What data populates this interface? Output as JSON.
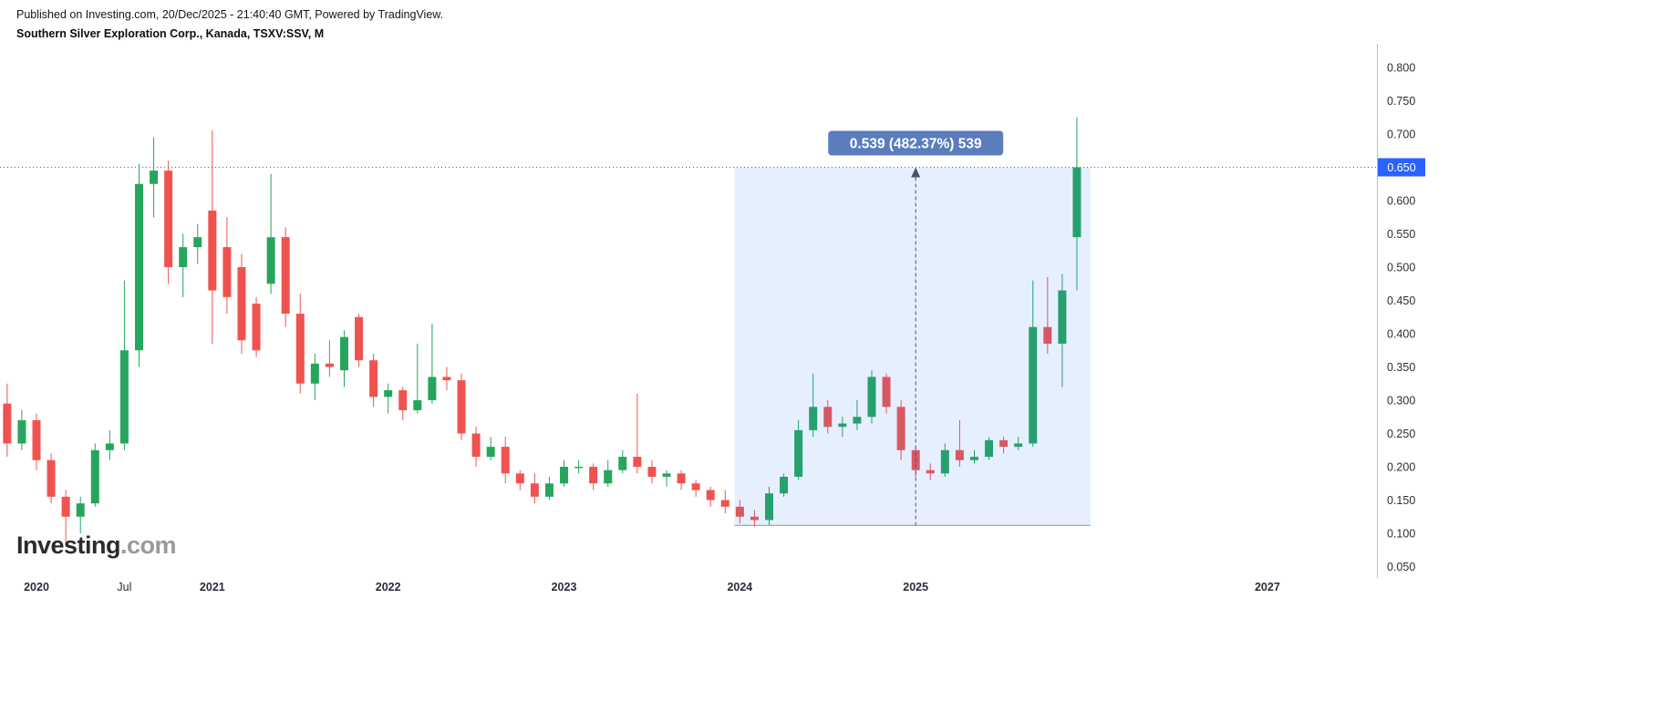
{
  "header": {
    "published_line": "Published on Investing.com, 20/Dec/2025 - 21:40:40 GMT, Powered by TradingView.",
    "instrument_line": "Southern Silver Exploration Corp., Kanada, TSXV:SSV, M"
  },
  "watermark": {
    "brand": "Investing",
    "suffix": ".com"
  },
  "colors": {
    "candle_up": "#26a65d",
    "candle_down": "#ef5350",
    "price_line": "#2962ff",
    "measure_fill": "rgba(49,121,245,0.12)",
    "measure_badge": "#5b7dbe",
    "measure_line": "#4a5568",
    "measure_edge": "#8796a5",
    "axis_text": "#2a2e39"
  },
  "chart_data": {
    "type": "candlestick",
    "title": "Southern Silver Exploration Corp., Kanada, TSXV:SSV, M",
    "timeframe": "Monthly",
    "ylim": [
      0.05,
      0.8
    ],
    "grid": false,
    "y_ticks": [
      "0.800",
      "0.750",
      "0.700",
      "0.650",
      "0.600",
      "0.550",
      "0.500",
      "0.450",
      "0.400",
      "0.350",
      "0.300",
      "0.250",
      "0.200",
      "0.150",
      "0.100",
      "0.050"
    ],
    "x_ticks": [
      {
        "label": "2020",
        "i": 2,
        "bold": true
      },
      {
        "label": "Jul",
        "i": 8,
        "bold": false
      },
      {
        "label": "2021",
        "i": 14,
        "bold": true
      },
      {
        "label": "2022",
        "i": 26,
        "bold": true
      },
      {
        "label": "2023",
        "i": 38,
        "bold": true
      },
      {
        "label": "2024",
        "i": 50,
        "bold": true
      },
      {
        "label": "2025",
        "i": 62,
        "bold": true
      },
      {
        "label": "2027",
        "i": 86,
        "bold": true
      }
    ],
    "candles": [
      {
        "t": "2019-11",
        "o": 0.295,
        "h": 0.325,
        "l": 0.215,
        "c": 0.235
      },
      {
        "t": "2019-12",
        "o": 0.235,
        "h": 0.285,
        "l": 0.225,
        "c": 0.27
      },
      {
        "t": "2020-01",
        "o": 0.27,
        "h": 0.28,
        "l": 0.195,
        "c": 0.21
      },
      {
        "t": "2020-02",
        "o": 0.21,
        "h": 0.22,
        "l": 0.145,
        "c": 0.155
      },
      {
        "t": "2020-03",
        "o": 0.155,
        "h": 0.165,
        "l": 0.08,
        "c": 0.125
      },
      {
        "t": "2020-04",
        "o": 0.125,
        "h": 0.155,
        "l": 0.1,
        "c": 0.145
      },
      {
        "t": "2020-05",
        "o": 0.145,
        "h": 0.235,
        "l": 0.14,
        "c": 0.225
      },
      {
        "t": "2020-06",
        "o": 0.225,
        "h": 0.255,
        "l": 0.21,
        "c": 0.235
      },
      {
        "t": "2020-07",
        "o": 0.235,
        "h": 0.48,
        "l": 0.225,
        "c": 0.375
      },
      {
        "t": "2020-08",
        "o": 0.375,
        "h": 0.655,
        "l": 0.35,
        "c": 0.625
      },
      {
        "t": "2020-09",
        "o": 0.625,
        "h": 0.695,
        "l": 0.575,
        "c": 0.645
      },
      {
        "t": "2020-10",
        "o": 0.645,
        "h": 0.66,
        "l": 0.475,
        "c": 0.5
      },
      {
        "t": "2020-11",
        "o": 0.5,
        "h": 0.55,
        "l": 0.455,
        "c": 0.53
      },
      {
        "t": "2020-12",
        "o": 0.53,
        "h": 0.565,
        "l": 0.505,
        "c": 0.545
      },
      {
        "t": "2021-01",
        "o": 0.585,
        "h": 0.705,
        "l": 0.385,
        "c": 0.465
      },
      {
        "t": "2021-02",
        "o": 0.53,
        "h": 0.575,
        "l": 0.43,
        "c": 0.455
      },
      {
        "t": "2021-03",
        "o": 0.5,
        "h": 0.52,
        "l": 0.37,
        "c": 0.39
      },
      {
        "t": "2021-04",
        "o": 0.445,
        "h": 0.455,
        "l": 0.365,
        "c": 0.375
      },
      {
        "t": "2021-05",
        "o": 0.475,
        "h": 0.64,
        "l": 0.46,
        "c": 0.545
      },
      {
        "t": "2021-06",
        "o": 0.545,
        "h": 0.56,
        "l": 0.41,
        "c": 0.43
      },
      {
        "t": "2021-07",
        "o": 0.43,
        "h": 0.46,
        "l": 0.31,
        "c": 0.325
      },
      {
        "t": "2021-08",
        "o": 0.325,
        "h": 0.37,
        "l": 0.3,
        "c": 0.355
      },
      {
        "t": "2021-09",
        "o": 0.355,
        "h": 0.39,
        "l": 0.335,
        "c": 0.35
      },
      {
        "t": "2021-10",
        "o": 0.345,
        "h": 0.405,
        "l": 0.32,
        "c": 0.395
      },
      {
        "t": "2021-11",
        "o": 0.425,
        "h": 0.43,
        "l": 0.35,
        "c": 0.36
      },
      {
        "t": "2021-12",
        "o": 0.36,
        "h": 0.37,
        "l": 0.29,
        "c": 0.305
      },
      {
        "t": "2022-01",
        "o": 0.305,
        "h": 0.325,
        "l": 0.28,
        "c": 0.315
      },
      {
        "t": "2022-02",
        "o": 0.315,
        "h": 0.32,
        "l": 0.27,
        "c": 0.285
      },
      {
        "t": "2022-03",
        "o": 0.285,
        "h": 0.385,
        "l": 0.28,
        "c": 0.3
      },
      {
        "t": "2022-04",
        "o": 0.3,
        "h": 0.415,
        "l": 0.295,
        "c": 0.335
      },
      {
        "t": "2022-05",
        "o": 0.335,
        "h": 0.35,
        "l": 0.315,
        "c": 0.33
      },
      {
        "t": "2022-06",
        "o": 0.33,
        "h": 0.34,
        "l": 0.24,
        "c": 0.25
      },
      {
        "t": "2022-07",
        "o": 0.25,
        "h": 0.26,
        "l": 0.2,
        "c": 0.215
      },
      {
        "t": "2022-08",
        "o": 0.215,
        "h": 0.245,
        "l": 0.21,
        "c": 0.23
      },
      {
        "t": "2022-09",
        "o": 0.23,
        "h": 0.245,
        "l": 0.175,
        "c": 0.19
      },
      {
        "t": "2022-10",
        "o": 0.19,
        "h": 0.195,
        "l": 0.165,
        "c": 0.175
      },
      {
        "t": "2022-11",
        "o": 0.175,
        "h": 0.19,
        "l": 0.145,
        "c": 0.155
      },
      {
        "t": "2022-12",
        "o": 0.155,
        "h": 0.185,
        "l": 0.15,
        "c": 0.175
      },
      {
        "t": "2023-01",
        "o": 0.175,
        "h": 0.21,
        "l": 0.17,
        "c": 0.2
      },
      {
        "t": "2023-02",
        "o": 0.2,
        "h": 0.21,
        "l": 0.19,
        "c": 0.2
      },
      {
        "t": "2023-03",
        "o": 0.2,
        "h": 0.205,
        "l": 0.165,
        "c": 0.175
      },
      {
        "t": "2023-04",
        "o": 0.175,
        "h": 0.21,
        "l": 0.17,
        "c": 0.195
      },
      {
        "t": "2023-05",
        "o": 0.195,
        "h": 0.225,
        "l": 0.19,
        "c": 0.215
      },
      {
        "t": "2023-06",
        "o": 0.215,
        "h": 0.31,
        "l": 0.19,
        "c": 0.2
      },
      {
        "t": "2023-07",
        "o": 0.2,
        "h": 0.21,
        "l": 0.175,
        "c": 0.185
      },
      {
        "t": "2023-08",
        "o": 0.185,
        "h": 0.195,
        "l": 0.17,
        "c": 0.19
      },
      {
        "t": "2023-09",
        "o": 0.19,
        "h": 0.195,
        "l": 0.165,
        "c": 0.175
      },
      {
        "t": "2023-10",
        "o": 0.175,
        "h": 0.18,
        "l": 0.155,
        "c": 0.165
      },
      {
        "t": "2023-11",
        "o": 0.165,
        "h": 0.17,
        "l": 0.14,
        "c": 0.15
      },
      {
        "t": "2023-12",
        "o": 0.15,
        "h": 0.165,
        "l": 0.13,
        "c": 0.14
      },
      {
        "t": "2024-01",
        "o": 0.14,
        "h": 0.15,
        "l": 0.115,
        "c": 0.125
      },
      {
        "t": "2024-02",
        "o": 0.125,
        "h": 0.135,
        "l": 0.11,
        "c": 0.12
      },
      {
        "t": "2024-03",
        "o": 0.12,
        "h": 0.17,
        "l": 0.112,
        "c": 0.16
      },
      {
        "t": "2024-04",
        "o": 0.16,
        "h": 0.19,
        "l": 0.155,
        "c": 0.185
      },
      {
        "t": "2024-05",
        "o": 0.185,
        "h": 0.27,
        "l": 0.18,
        "c": 0.255
      },
      {
        "t": "2024-06",
        "o": 0.255,
        "h": 0.34,
        "l": 0.245,
        "c": 0.29
      },
      {
        "t": "2024-07",
        "o": 0.29,
        "h": 0.3,
        "l": 0.25,
        "c": 0.26
      },
      {
        "t": "2024-08",
        "o": 0.26,
        "h": 0.275,
        "l": 0.245,
        "c": 0.265
      },
      {
        "t": "2024-09",
        "o": 0.265,
        "h": 0.3,
        "l": 0.255,
        "c": 0.275
      },
      {
        "t": "2024-10",
        "o": 0.275,
        "h": 0.345,
        "l": 0.265,
        "c": 0.335
      },
      {
        "t": "2024-11",
        "o": 0.335,
        "h": 0.34,
        "l": 0.28,
        "c": 0.29
      },
      {
        "t": "2024-12",
        "o": 0.29,
        "h": 0.3,
        "l": 0.21,
        "c": 0.225
      },
      {
        "t": "2025-01",
        "o": 0.225,
        "h": 0.23,
        "l": 0.185,
        "c": 0.195
      },
      {
        "t": "2025-02",
        "o": 0.195,
        "h": 0.205,
        "l": 0.18,
        "c": 0.19
      },
      {
        "t": "2025-03",
        "o": 0.19,
        "h": 0.235,
        "l": 0.185,
        "c": 0.225
      },
      {
        "t": "2025-04",
        "o": 0.225,
        "h": 0.27,
        "l": 0.2,
        "c": 0.21
      },
      {
        "t": "2025-05",
        "o": 0.21,
        "h": 0.225,
        "l": 0.205,
        "c": 0.215
      },
      {
        "t": "2025-06",
        "o": 0.215,
        "h": 0.245,
        "l": 0.21,
        "c": 0.24
      },
      {
        "t": "2025-07",
        "o": 0.24,
        "h": 0.245,
        "l": 0.22,
        "c": 0.23
      },
      {
        "t": "2025-08",
        "o": 0.23,
        "h": 0.245,
        "l": 0.225,
        "c": 0.235
      },
      {
        "t": "2025-09",
        "o": 0.235,
        "h": 0.48,
        "l": 0.23,
        "c": 0.41
      },
      {
        "t": "2025-10",
        "o": 0.41,
        "h": 0.485,
        "l": 0.37,
        "c": 0.385
      },
      {
        "t": "2025-11",
        "o": 0.385,
        "h": 0.49,
        "l": 0.32,
        "c": 0.465
      },
      {
        "t": "2025-12",
        "o": 0.545,
        "h": 0.725,
        "l": 0.465,
        "c": 0.65
      }
    ],
    "overlays": {
      "horizontal_line": {
        "value": 0.65,
        "label": "0.650"
      },
      "measurement": {
        "label": "0.539 (482.37%) 539",
        "start_month": "2024-01",
        "end_month": "2025-12",
        "arrow_month": "2025-01",
        "low_value": 0.112,
        "high_value": 0.65
      }
    }
  }
}
